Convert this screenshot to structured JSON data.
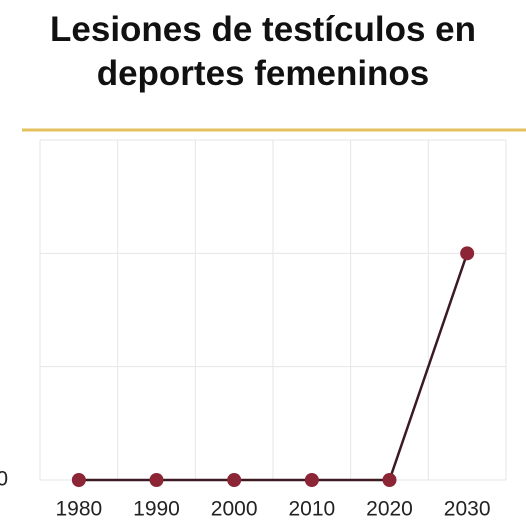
{
  "chart_data": {
    "type": "line",
    "title": "Lesiones de testículos en deportes femeninos",
    "categories": [
      "1980",
      "1990",
      "2000",
      "2010",
      "2020",
      "2030"
    ],
    "values": [
      0,
      0,
      0,
      0,
      0,
      2
    ],
    "line_color": "#3b1a22",
    "marker_color": "#8c2535",
    "ylim": [
      0,
      3
    ],
    "yticks": [
      0
    ],
    "ygrid": [
      1,
      2,
      3
    ],
    "grid": true
  }
}
